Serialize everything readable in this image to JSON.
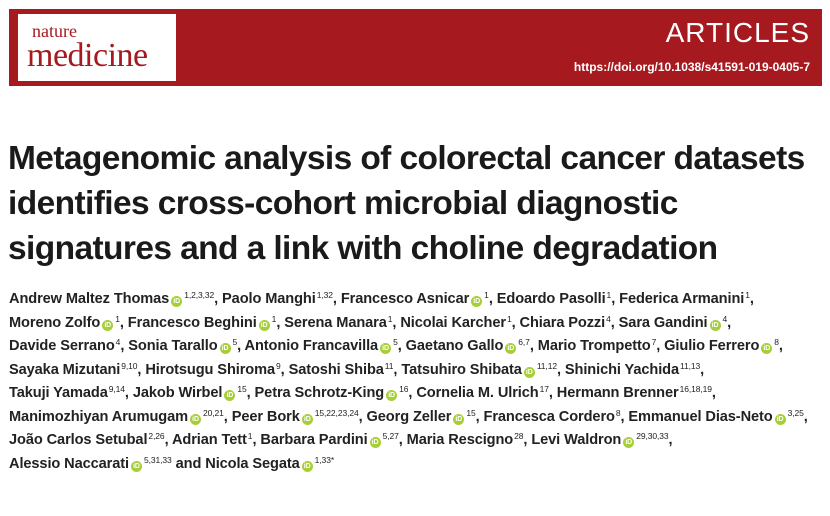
{
  "header": {
    "journal_line1": "nature",
    "journal_line2": "medicine",
    "section": "ARTICLES",
    "doi": "https://doi.org/10.1038/s41591-019-0405-7"
  },
  "article": {
    "title": "Metagenomic analysis of colorectal cancer datasets identifies cross-cohort microbial diagnostic signatures and a link with choline degradation",
    "and_word": "and",
    "authors": [
      {
        "name": "Andrew Maltez Thomas",
        "orcid": true,
        "aff": "1,2,3,32"
      },
      {
        "name": "Paolo Manghi",
        "orcid": false,
        "aff": "1,32"
      },
      {
        "name": "Francesco Asnicar",
        "orcid": true,
        "aff": "1"
      },
      {
        "name": "Edoardo Pasolli",
        "orcid": false,
        "aff": "1"
      },
      {
        "name": "Federica Armanini",
        "orcid": false,
        "aff": "1"
      },
      {
        "name": "Moreno Zolfo",
        "orcid": true,
        "aff": "1"
      },
      {
        "name": "Francesco Beghini",
        "orcid": true,
        "aff": "1"
      },
      {
        "name": "Serena Manara",
        "orcid": false,
        "aff": "1"
      },
      {
        "name": "Nicolai Karcher",
        "orcid": false,
        "aff": "1"
      },
      {
        "name": "Chiara Pozzi",
        "orcid": false,
        "aff": "4"
      },
      {
        "name": "Sara Gandini",
        "orcid": true,
        "aff": "4"
      },
      {
        "name": "Davide Serrano",
        "orcid": false,
        "aff": "4"
      },
      {
        "name": "Sonia Tarallo",
        "orcid": true,
        "aff": "5"
      },
      {
        "name": "Antonio Francavilla",
        "orcid": true,
        "aff": "5"
      },
      {
        "name": "Gaetano Gallo",
        "orcid": true,
        "aff": "6,7"
      },
      {
        "name": "Mario Trompetto",
        "orcid": false,
        "aff": "7"
      },
      {
        "name": "Giulio Ferrero",
        "orcid": true,
        "aff": "8"
      },
      {
        "name": "Sayaka Mizutani",
        "orcid": false,
        "aff": "9,10"
      },
      {
        "name": "Hirotsugu Shiroma",
        "orcid": false,
        "aff": "9"
      },
      {
        "name": "Satoshi Shiba",
        "orcid": false,
        "aff": "11"
      },
      {
        "name": "Tatsuhiro Shibata",
        "orcid": true,
        "aff": "11,12"
      },
      {
        "name": "Shinichi Yachida",
        "orcid": false,
        "aff": "11,13"
      },
      {
        "name": "Takuji Yamada",
        "orcid": false,
        "aff": "9,14"
      },
      {
        "name": "Jakob Wirbel",
        "orcid": true,
        "aff": "15"
      },
      {
        "name": "Petra Schrotz-King",
        "orcid": true,
        "aff": "16"
      },
      {
        "name": "Cornelia M. Ulrich",
        "orcid": false,
        "aff": "17"
      },
      {
        "name": "Hermann Brenner",
        "orcid": false,
        "aff": "16,18,19"
      },
      {
        "name": "Manimozhiyan Arumugam",
        "orcid": true,
        "aff": "20,21"
      },
      {
        "name": "Peer Bork",
        "orcid": true,
        "aff": "15,22,23,24"
      },
      {
        "name": "Georg Zeller",
        "orcid": true,
        "aff": "15"
      },
      {
        "name": "Francesca Cordero",
        "orcid": false,
        "aff": "8"
      },
      {
        "name": "Emmanuel Dias-Neto",
        "orcid": true,
        "aff": "3,25"
      },
      {
        "name": "João Carlos Setubal",
        "orcid": false,
        "aff": "2,26"
      },
      {
        "name": "Adrian Tett",
        "orcid": false,
        "aff": "1"
      },
      {
        "name": "Barbara Pardini",
        "orcid": true,
        "aff": "5,27"
      },
      {
        "name": "Maria Rescigno",
        "orcid": false,
        "aff": "28"
      },
      {
        "name": "Levi Waldron",
        "orcid": true,
        "aff": "29,30,33"
      },
      {
        "name": "Alessio Naccarati",
        "orcid": true,
        "aff": "5,31,33"
      },
      {
        "name": "Nicola Segata",
        "orcid": true,
        "aff": "1,33*"
      }
    ]
  },
  "colors": {
    "brand": "#a6191f",
    "orcid": "#a6ce39",
    "text": "#1a1a1a"
  },
  "icons": {
    "orcid": "orcid-icon",
    "orcid_glyph": "iD"
  }
}
